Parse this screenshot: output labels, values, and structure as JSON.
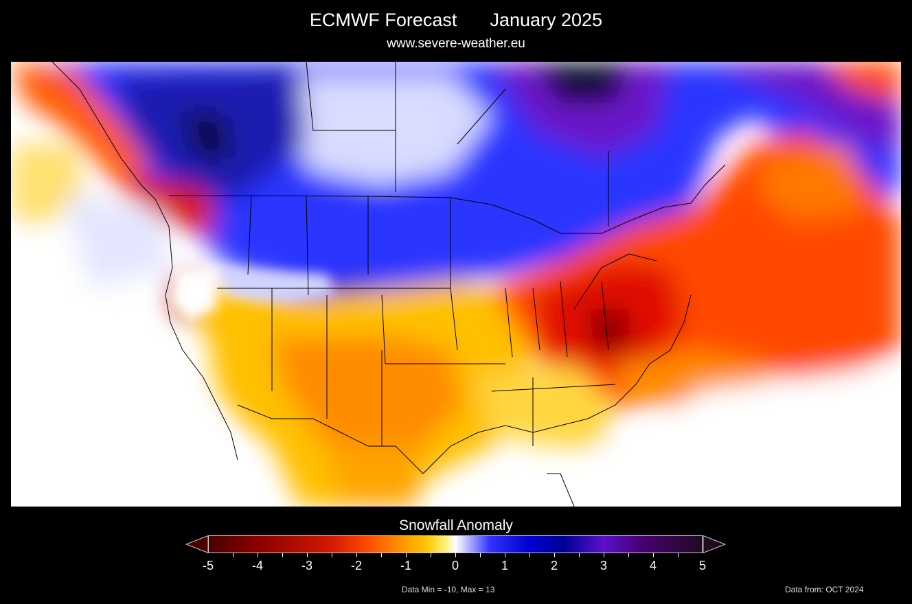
{
  "header": {
    "title_left": "ECMWF Forecast",
    "title_right": "January 2025",
    "subtitle": "www.severe-weather.eu"
  },
  "map": {
    "region": "North America",
    "variable": "Snowfall Anomaly"
  },
  "colorbar": {
    "title": "Snowfall Anomaly",
    "labels": [
      "-5",
      "-4",
      "-3",
      "-2",
      "-1",
      "0",
      "1",
      "2",
      "3",
      "4",
      "5"
    ],
    "min": -5,
    "max": 5,
    "colors": {
      "deficit_dark": "#4a0000",
      "deficit": "#ff4a00",
      "neutral": "#ffffff",
      "surplus": "#0000d0",
      "surplus_dark": "#200a20"
    }
  },
  "footer": {
    "data_range": "Data Min = -10, Max = 13",
    "data_from": "Data from: OCT 2024"
  }
}
